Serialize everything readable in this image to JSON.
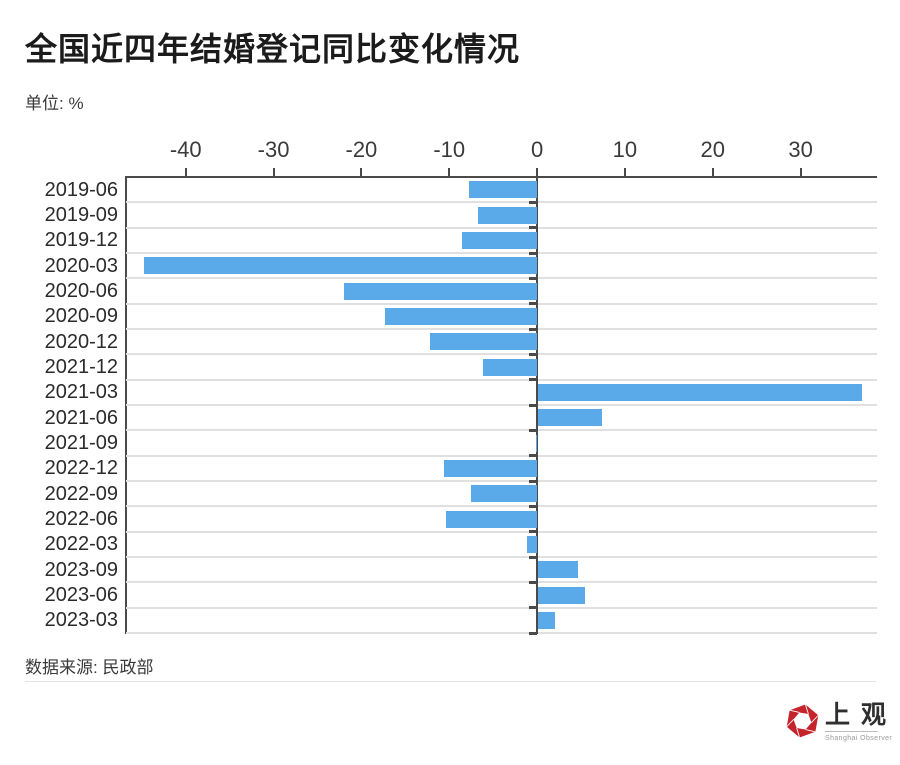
{
  "page": {
    "title": "全国近四年结婚登记同比变化情况",
    "unit_label": "单位:  %",
    "source_label": "数据来源:  民政部",
    "logo": {
      "cn": "上观",
      "en": "Shanghai Observer",
      "red": "#c4242b"
    }
  },
  "chart_data": {
    "type": "bar",
    "orientation": "horizontal",
    "title": "全国近四年结婚登记同比变化情况",
    "unit": "%",
    "source": "民政部",
    "categories": [
      "2019-06",
      "2019-09",
      "2019-12",
      "2020-03",
      "2020-06",
      "2020-09",
      "2020-12",
      "2021-12",
      "2021-03",
      "2021-06",
      "2021-09",
      "2022-12",
      "2022-09",
      "2022-06",
      "2022-03",
      "2023-09",
      "2023-06",
      "2023-03"
    ],
    "values": [
      -7.7,
      -6.7,
      -8.5,
      -44.7,
      -22.0,
      -17.3,
      -12.2,
      -6.1,
      36.9,
      7.3,
      -0.1,
      -10.6,
      -7.5,
      -10.4,
      -1.2,
      4.5,
      5.3,
      1.9
    ],
    "x_ticks": [
      -40,
      -30,
      -20,
      -10,
      0,
      10,
      20,
      30
    ],
    "xlim": [
      -46.8,
      38.7
    ],
    "grid": true,
    "legend": false,
    "bar_color": "#5aa9e9"
  }
}
